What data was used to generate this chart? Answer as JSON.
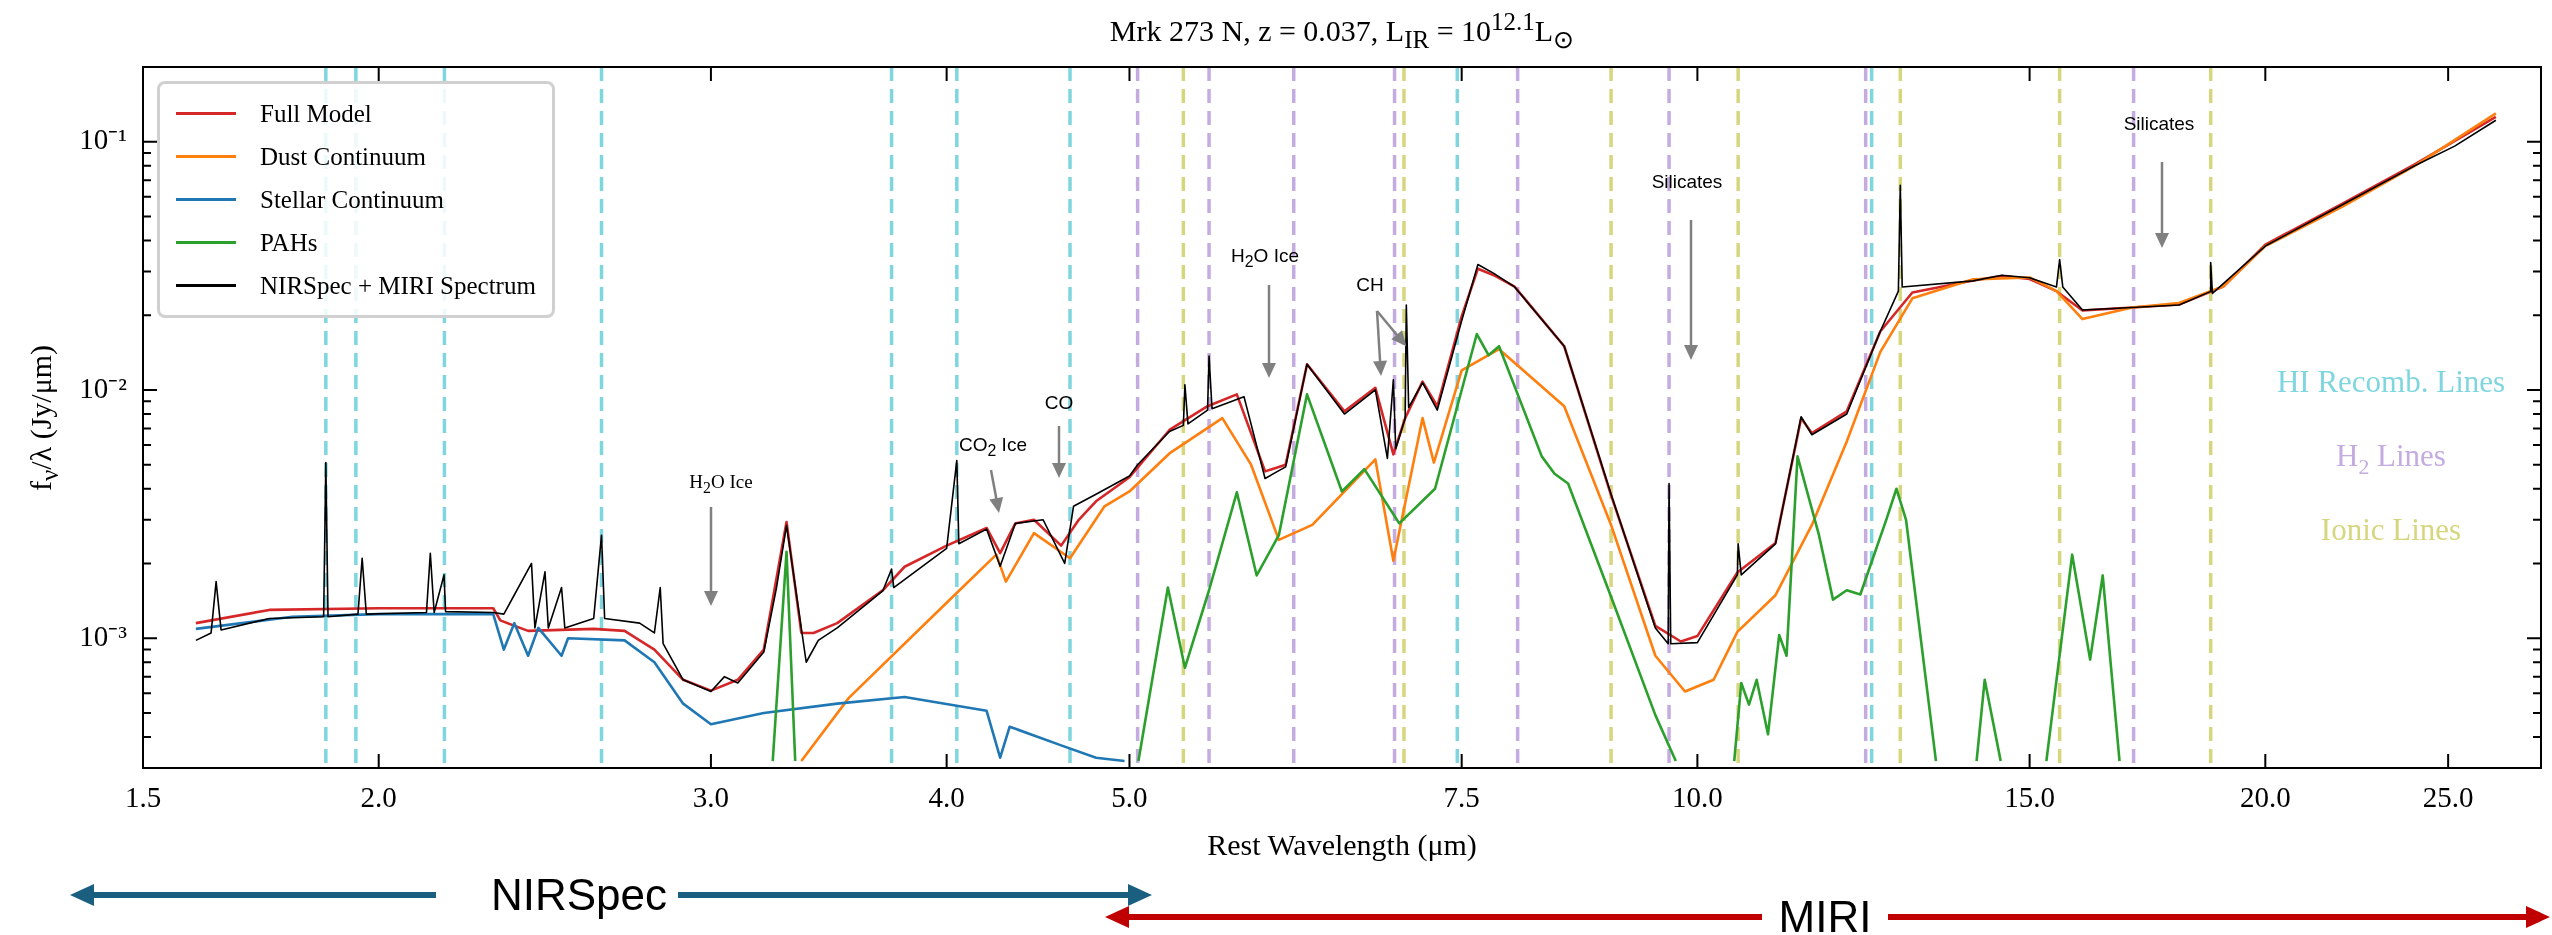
{
  "chart_data": {
    "type": "line",
    "title": "Mrk 273 N, z = 0.037, L$_{IR}$ = 10$^{12.1}$L$_{⊙}$",
    "xlabel": "Rest Wavelength (μm)",
    "ylabel": "f$_{ν}$/λ (Jy/μm)",
    "log": "xy",
    "legend": "top left",
    "xlim": [
      1.5,
      28
    ],
    "ylim": [
      0.0003,
      0.2
    ],
    "xticks": [
      1.5,
      {
        "value": 2,
        "label": "2.0"
      },
      {
        "value": 3,
        "label": "3.0"
      },
      {
        "value": 4,
        "label": "4.0"
      },
      {
        "value": 5,
        "label": "5.0"
      },
      7.5,
      {
        "value": 10,
        "label": "10.0"
      },
      {
        "value": 15,
        "label": "15.0"
      },
      {
        "value": 20,
        "label": "20.0"
      },
      {
        "value": 25,
        "label": "25.0"
      }
    ],
    "yticks": [
      {
        "value": 0.0004,
        "label": null
      },
      {
        "value": 0.0005,
        "label": null
      },
      {
        "value": 0.0006,
        "label": null
      },
      {
        "value": 0.0007,
        "label": null
      },
      {
        "value": 0.0008,
        "label": null
      },
      {
        "value": 0.0009,
        "label": null
      },
      {
        "value": 0.001,
        "label": "10⁻³"
      },
      {
        "value": 0.002,
        "label": null
      },
      {
        "value": 0.003,
        "label": null
      },
      {
        "value": 0.004,
        "label": null
      },
      {
        "value": 0.005,
        "label": null
      },
      {
        "value": 0.006,
        "label": null
      },
      {
        "value": 0.007,
        "label": null
      },
      {
        "value": 0.008,
        "label": null
      },
      {
        "value": 0.009,
        "label": null
      },
      {
        "value": 0.01,
        "label": "10⁻²"
      },
      {
        "value": 0.02,
        "label": null
      },
      {
        "value": 0.03,
        "label": null
      },
      {
        "value": 0.04,
        "label": null
      },
      {
        "value": 0.05,
        "label": null
      },
      {
        "value": 0.06,
        "label": null
      },
      {
        "value": 0.07,
        "label": null
      },
      {
        "value": 0.08,
        "label": null
      },
      {
        "value": 0.09,
        "label": null
      },
      {
        "value": 0.1,
        "label": "10⁻¹"
      }
    ],
    "series": [
      {
        "name": "Full Model",
        "color": "#d62728",
        "x": [
          1.6,
          1.75,
          2.0,
          2.3,
          2.32,
          2.4,
          2.6,
          2.7,
          2.8,
          2.9,
          3.0,
          3.1,
          3.2,
          3.29,
          3.35,
          3.4,
          3.5,
          3.7,
          3.8,
          4.0,
          4.2,
          4.27,
          4.35,
          4.45,
          4.6,
          4.7,
          4.8,
          5.0,
          5.25,
          5.5,
          5.7,
          5.9,
          6.05,
          6.21,
          6.5,
          6.75,
          6.9,
          7.0,
          7.15,
          7.28,
          7.5,
          7.65,
          7.8,
          8.0,
          8.5,
          9.0,
          9.5,
          9.8,
          10.0,
          10.5,
          11.0,
          11.35,
          11.5,
          12.0,
          12.5,
          13.0,
          14.0,
          14.5,
          15.0,
          15.5,
          16.0,
          17.0,
          18.0,
          19.0,
          20.0,
          22.0,
          24.0,
          26.5
        ],
        "values": [
          0.00115,
          0.0013,
          0.00132,
          0.00132,
          0.00118,
          0.00107,
          0.00109,
          0.00107,
          0.0009,
          0.00068,
          0.000615,
          0.00068,
          0.0009,
          0.00294,
          0.00105,
          0.00105,
          0.00115,
          0.00156,
          0.00194,
          0.00236,
          0.00278,
          0.0022,
          0.0029,
          0.003,
          0.00236,
          0.003,
          0.00356,
          0.00445,
          0.0069,
          0.0086,
          0.0096,
          0.0047,
          0.005,
          0.0127,
          0.0082,
          0.0102,
          0.0055,
          0.0077,
          0.0108,
          0.0086,
          0.0198,
          0.0308,
          0.029,
          0.0261,
          0.015,
          0.00377,
          0.00112,
          0.00097,
          0.00102,
          0.00184,
          0.00242,
          0.0077,
          0.0067,
          0.0082,
          0.0172,
          0.0247,
          0.0276,
          0.0288,
          0.028,
          0.025,
          0.0209,
          0.0215,
          0.0221,
          0.0261,
          0.0385,
          0.0566,
          0.081,
          0.126
        ]
      },
      {
        "name": "Dust Continuum",
        "color": "#ff7f0e",
        "x": [
          3.35,
          3.55,
          4.0,
          4.25,
          4.3,
          4.45,
          4.65,
          4.85,
          5.0,
          5.25,
          5.6,
          5.8,
          6.0,
          6.25,
          6.75,
          6.9,
          7.15,
          7.25,
          7.5,
          7.85,
          8.5,
          9.0,
          9.5,
          9.85,
          10.2,
          10.5,
          11.0,
          11.5,
          12.0,
          12.5,
          13.0,
          14.0,
          15.0,
          15.5,
          16.0,
          17.0,
          18.0,
          19.0,
          20.0,
          22.0,
          24.0,
          26.5
        ],
        "values": [
          0.00032,
          0.000575,
          0.00139,
          0.00217,
          0.00169,
          0.00265,
          0.0021,
          0.0034,
          0.0039,
          0.00555,
          0.0077,
          0.005,
          0.00249,
          0.00286,
          0.00525,
          0.00205,
          0.0077,
          0.0051,
          0.012,
          0.0146,
          0.0086,
          0.00286,
          0.00085,
          0.00061,
          0.00068,
          0.00106,
          0.00149,
          0.00286,
          0.0062,
          0.0142,
          0.0234,
          0.0279,
          0.0284,
          0.025,
          0.0193,
          0.0215,
          0.0224,
          0.0261,
          0.038,
          0.055,
          0.08,
          0.13
        ]
      },
      {
        "name": "Stellar Continuum",
        "color": "#1f77b4",
        "x": [
          1.6,
          1.8,
          2.0,
          2.3,
          2.33,
          2.36,
          2.4,
          2.43,
          2.5,
          2.52,
          2.7,
          2.8,
          2.9,
          3.0,
          3.2,
          3.5,
          3.8,
          4.2,
          4.27,
          4.32,
          4.6,
          4.8,
          4.97
        ],
        "values": [
          0.00109,
          0.00122,
          0.00125,
          0.00125,
          0.0009,
          0.00115,
          0.00085,
          0.0011,
          0.00085,
          0.001,
          0.00098,
          0.0008,
          0.000545,
          0.00045,
          0.0005,
          0.000545,
          0.00058,
          0.00051,
          0.00033,
          0.00044,
          0.00037,
          0.00033,
          0.00032
        ]
      },
      {
        "name": "PAHs",
        "color": "#2ca02c",
        "x": [
          3.235,
          3.29,
          3.325,
          null,
          5.055,
          5.24,
          5.35,
          5.51,
          5.7,
          5.84,
          6.0,
          6.21,
          6.48,
          6.66,
          6.95,
          7.26,
          7.64,
          7.75,
          7.85,
          8.27,
          8.4,
          8.54,
          9.0,
          9.5,
          9.74,
          null,
          10.46,
          10.55,
          10.65,
          10.75,
          10.9,
          11.05,
          11.15,
          11.3,
          11.6,
          11.8,
          12.0,
          12.2,
          12.6,
          12.75,
          12.9,
          13.38,
          null,
          14.06,
          14.2,
          14.48,
          null,
          15.31,
          15.8,
          16.15,
          16.4,
          16.74
        ],
        "values": [
          0.00032,
          0.00223,
          0.00032,
          null,
          0.00032,
          0.0016,
          0.00076,
          0.00156,
          0.00387,
          0.00179,
          0.0026,
          0.0096,
          0.0039,
          0.0048,
          0.0029,
          0.004,
          0.0168,
          0.0138,
          0.015,
          0.0054,
          0.0046,
          0.0042,
          0.00147,
          0.00049,
          0.00032,
          null,
          0.00032,
          0.00066,
          0.00054,
          0.00068,
          0.00041,
          0.00103,
          0.00085,
          0.0054,
          0.0026,
          0.00143,
          0.00156,
          0.0015,
          0.00304,
          0.004,
          0.003,
          0.00032,
          null,
          0.00032,
          0.00068,
          0.00032,
          null,
          0.00032,
          0.00217,
          0.00082,
          0.00179,
          0.00032
        ]
      },
      {
        "name": "NIRSpec + MIRI Spectrum",
        "color": "#000000",
        "x": [
          1.6,
          1.63,
          1.64,
          1.65,
          1.75,
          1.87,
          1.875,
          1.88,
          1.95,
          1.96,
          1.97,
          2.12,
          2.13,
          2.14,
          2.166,
          2.17,
          2.3,
          2.33,
          2.41,
          2.42,
          2.45,
          2.46,
          2.5,
          2.51,
          2.6,
          2.625,
          2.635,
          2.75,
          2.8,
          2.82,
          2.83,
          2.9,
          3.0,
          3.05,
          3.1,
          3.2,
          3.25,
          3.29,
          3.33,
          3.37,
          3.42,
          3.5,
          3.7,
          3.74,
          3.75,
          4.0,
          4.05,
          4.06,
          4.2,
          4.27,
          4.35,
          4.5,
          4.62,
          4.67,
          4.8,
          5.0,
          5.05,
          5.25,
          5.34,
          5.35,
          5.37,
          5.5,
          5.51,
          5.53,
          5.75,
          5.9,
          6.05,
          6.21,
          6.5,
          6.75,
          6.85,
          6.9,
          6.92,
          7.0,
          7.01,
          7.03,
          7.15,
          7.28,
          7.5,
          7.65,
          7.8,
          8.0,
          8.5,
          9.0,
          9.5,
          9.65,
          9.66,
          9.68,
          10.0,
          10.5,
          10.51,
          10.55,
          11.0,
          11.35,
          11.5,
          12.0,
          12.5,
          12.78,
          12.81,
          12.84,
          14.0,
          14.5,
          15.0,
          15.5,
          15.56,
          15.62,
          16.0,
          17.0,
          18.0,
          18.7,
          18.71,
          18.75,
          20.0,
          22.0,
          24.0,
          25.2,
          26.5
        ],
        "values": [
          0.00098,
          0.00105,
          0.00169,
          0.00108,
          0.0012,
          0.00122,
          0.0051,
          0.00122,
          0.00125,
          0.0021,
          0.00125,
          0.00127,
          0.0022,
          0.00127,
          0.0018,
          0.00128,
          0.00127,
          0.00125,
          0.002,
          0.0011,
          0.00185,
          0.0011,
          0.0016,
          0.0011,
          0.0012,
          0.0026,
          0.0012,
          0.00115,
          0.00105,
          0.0016,
          0.00095,
          0.00068,
          0.00061,
          0.0007,
          0.00066,
          0.00088,
          0.0016,
          0.00285,
          0.0015,
          0.0008,
          0.00098,
          0.0011,
          0.00155,
          0.0019,
          0.0016,
          0.0023,
          0.0052,
          0.0024,
          0.00275,
          0.00195,
          0.0029,
          0.003,
          0.002,
          0.0034,
          0.0038,
          0.0045,
          0.005,
          0.0068,
          0.0072,
          0.0105,
          0.0073,
          0.0083,
          0.0137,
          0.0084,
          0.0094,
          0.0044,
          0.0049,
          0.0127,
          0.008,
          0.01,
          0.0053,
          0.011,
          0.0058,
          0.0077,
          0.022,
          0.0085,
          0.0107,
          0.0083,
          0.019,
          0.032,
          0.0295,
          0.026,
          0.015,
          0.0038,
          0.0011,
          0.00095,
          0.0042,
          0.00095,
          0.00096,
          0.0018,
          0.0024,
          0.0018,
          0.0024,
          0.0078,
          0.0066,
          0.008,
          0.0172,
          0.025,
          0.0668,
          0.026,
          0.0275,
          0.029,
          0.0283,
          0.026,
          0.0335,
          0.026,
          0.021,
          0.0215,
          0.022,
          0.0249,
          0.0326,
          0.0245,
          0.038,
          0.056,
          0.08,
          0.096,
          0.122
        ]
      }
    ],
    "ref_lines": [
      {
        "axis": "x",
        "value": 1.875,
        "color": "#7fd6df",
        "line_style": "dashed",
        "label": "HI Recomb. Lines"
      },
      {
        "axis": "x",
        "value": 1.945,
        "color": "#7fd6df",
        "line_style": "dashed"
      },
      {
        "axis": "x",
        "value": 2.167,
        "color": "#7fd6df",
        "line_style": "dashed"
      },
      {
        "axis": "x",
        "value": 2.625,
        "color": "#7fd6df",
        "line_style": "dashed"
      },
      {
        "axis": "x",
        "value": 3.74,
        "color": "#7fd6df",
        "line_style": "dashed"
      },
      {
        "axis": "x",
        "value": 4.05,
        "color": "#7fd6df",
        "line_style": "dashed"
      },
      {
        "axis": "x",
        "value": 4.65,
        "color": "#7fd6df",
        "line_style": "dashed"
      },
      {
        "axis": "x",
        "value": 7.46,
        "color": "#7fd6df",
        "line_style": "dashed"
      },
      {
        "axis": "x",
        "value": 12.37,
        "color": "#7fd6df",
        "line_style": "dashed"
      },
      {
        "axis": "x",
        "value": 5.05,
        "color": "#c4abe0",
        "line_style": "dashed",
        "label": "H$_{2}$ Lines"
      },
      {
        "axis": "x",
        "value": 5.51,
        "color": "#c4abe0",
        "line_style": "dashed"
      },
      {
        "axis": "x",
        "value": 6.11,
        "color": "#c4abe0",
        "line_style": "dashed"
      },
      {
        "axis": "x",
        "value": 6.91,
        "color": "#c4abe0",
        "line_style": "dashed"
      },
      {
        "axis": "x",
        "value": 8.03,
        "color": "#c4abe0",
        "line_style": "dashed"
      },
      {
        "axis": "x",
        "value": 9.66,
        "color": "#c4abe0",
        "line_style": "dashed"
      },
      {
        "axis": "x",
        "value": 12.28,
        "color": "#c4abe0",
        "line_style": "dashed"
      },
      {
        "axis": "x",
        "value": 17.03,
        "color": "#c4abe0",
        "line_style": "dashed"
      },
      {
        "axis": "x",
        "value": 5.34,
        "color": "#d6d67f",
        "line_style": "dashed",
        "label": "Ionic Lines"
      },
      {
        "axis": "x",
        "value": 6.99,
        "color": "#d6d67f",
        "line_style": "dashed"
      },
      {
        "axis": "x",
        "value": 9.0,
        "color": "#d6d67f",
        "line_style": "dashed"
      },
      {
        "axis": "x",
        "value": 10.51,
        "color": "#d6d67f",
        "line_style": "dashed"
      },
      {
        "axis": "x",
        "value": 12.81,
        "color": "#d6d67f",
        "line_style": "dashed"
      },
      {
        "axis": "x",
        "value": 15.56,
        "color": "#d6d67f",
        "line_style": "dashed"
      },
      {
        "axis": "x",
        "value": 18.71,
        "color": "#d6d67f",
        "line_style": "dashed"
      }
    ],
    "annotations": [
      "H$_{2}$O Ice",
      "CO$_{2}$ Ice",
      "CO",
      "H$_{2}$O Ice",
      {
        "text": "CH",
        "x": 7.01,
        "y": 0.015
      },
      "Silicates",
      "Silicates",
      "NIRSpec",
      "MIRI"
    ]
  }
}
